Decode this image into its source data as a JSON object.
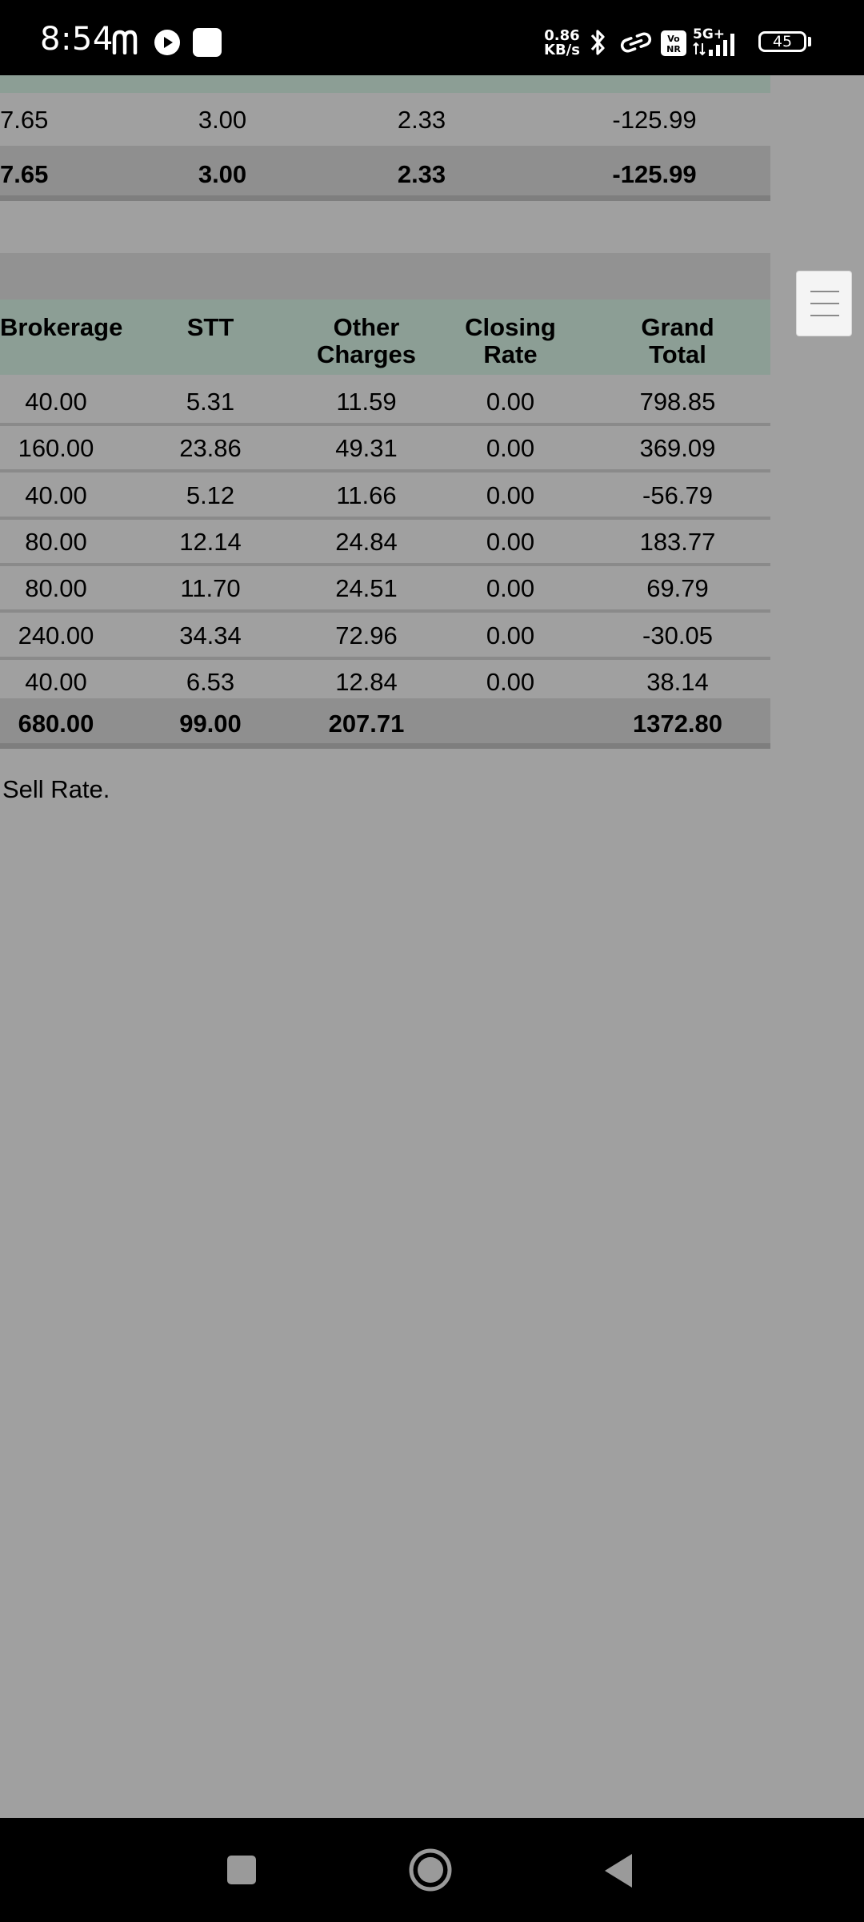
{
  "status_bar": {
    "time": "8:54",
    "net_speed_value": "0.86",
    "net_speed_unit": "KB/s",
    "network": "5G+",
    "volte": "Vo NR",
    "battery": "45",
    "icons": [
      "m-app-icon",
      "play-icon",
      "square-app-icon",
      "bluetooth-icon",
      "link-icon",
      "volte-icon",
      "signal-icon",
      "battery-icon"
    ]
  },
  "top_table": {
    "rows": [
      {
        "c1": "7.65",
        "c2": "3.00",
        "c3": "2.33",
        "c4": "-125.99"
      }
    ],
    "total": {
      "c1": "7.65",
      "c2": "3.00",
      "c3": "2.33",
      "c4": "-125.99"
    }
  },
  "charges_table": {
    "headers": {
      "brokerage": "Brokerage",
      "stt": "STT",
      "other_1": "Other",
      "other_2": "Charges",
      "closing_1": "Closing",
      "closing_2": "Rate",
      "grand_1": "Grand",
      "grand_2": "Total"
    },
    "rows": [
      {
        "brokerage": "40.00",
        "stt": "5.31",
        "other": "11.59",
        "closing": "0.00",
        "grand": "798.85"
      },
      {
        "brokerage": "160.00",
        "stt": "23.86",
        "other": "49.31",
        "closing": "0.00",
        "grand": "369.09"
      },
      {
        "brokerage": "40.00",
        "stt": "5.12",
        "other": "11.66",
        "closing": "0.00",
        "grand": "-56.79"
      },
      {
        "brokerage": "80.00",
        "stt": "12.14",
        "other": "24.84",
        "closing": "0.00",
        "grand": "183.77"
      },
      {
        "brokerage": "80.00",
        "stt": "11.70",
        "other": "24.51",
        "closing": "0.00",
        "grand": "69.79"
      },
      {
        "brokerage": "240.00",
        "stt": "34.34",
        "other": "72.96",
        "closing": "0.00",
        "grand": "-30.05"
      },
      {
        "brokerage": "40.00",
        "stt": "6.53",
        "other": "12.84",
        "closing": "0.00",
        "grand": "38.14"
      }
    ],
    "total": {
      "brokerage": "680.00",
      "stt": "99.00",
      "other": "207.71",
      "closing": "",
      "grand": "1372.80"
    }
  },
  "footnote": "Sell Rate.",
  "floating_menu": {
    "icon": "hamburger-menu-icon"
  },
  "nav_bar": {
    "icons": [
      "recents-square-icon",
      "home-circle-icon",
      "back-triangle-icon"
    ]
  },
  "colors": {
    "page_bg": "#a0a0a0",
    "header_bg": "#8c9e95",
    "total_bg": "#8f8f8f",
    "section_bar": "#929292"
  }
}
